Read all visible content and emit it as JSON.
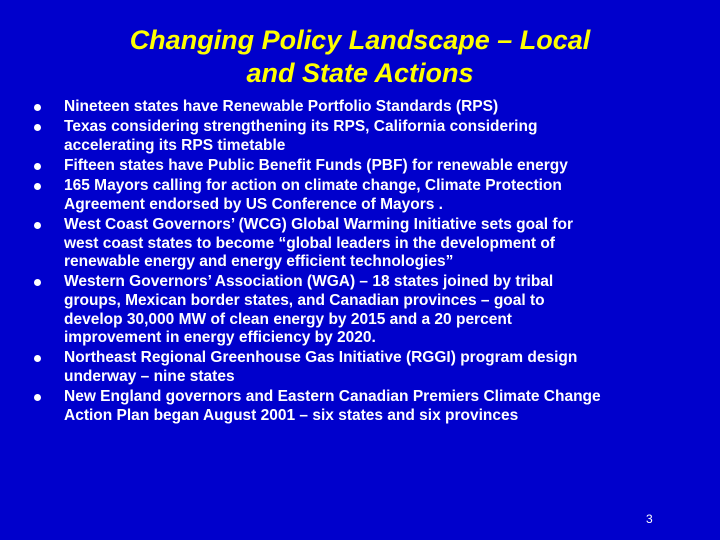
{
  "slide": {
    "title_lines": [
      "Changing Policy Landscape – Local",
      "and State Actions"
    ],
    "bullets": [
      [
        "Nineteen states have Renewable Portfolio Standards (RPS)"
      ],
      [
        "Texas considering strengthening its RPS, California considering",
        "accelerating its RPS timetable"
      ],
      [
        "Fifteen states have Public Benefit Funds (PBF) for renewable energy"
      ],
      [
        "165 Mayors calling for action on climate change, Climate Protection",
        "Agreement endorsed by US Conference of Mayors ."
      ],
      [
        "West Coast Governors’ (WCG) Global Warming Initiative sets goal for",
        "west coast states to become “global leaders in the development of",
        "renewable energy and energy efficient technologies”"
      ],
      [
        "Western Governors’ Association (WGA) – 18 states joined by tribal",
        "groups, Mexican border states, and Canadian provinces – goal to",
        "develop 30,000 MW of clean energy by 2015 and a 20 percent",
        "improvement in energy efficiency by 2020."
      ],
      [
        "Northeast  Regional Greenhouse Gas Initiative (RGGI) program design",
        "underway – nine states"
      ],
      [
        "New England governors and Eastern Canadian Premiers Climate Change",
        "Action Plan began August 2001 – six states and six provinces"
      ]
    ],
    "page_number": "3",
    "colors": {
      "background": "#0000CC",
      "title": "#FFFF00",
      "text": "#FFFFFF"
    }
  }
}
